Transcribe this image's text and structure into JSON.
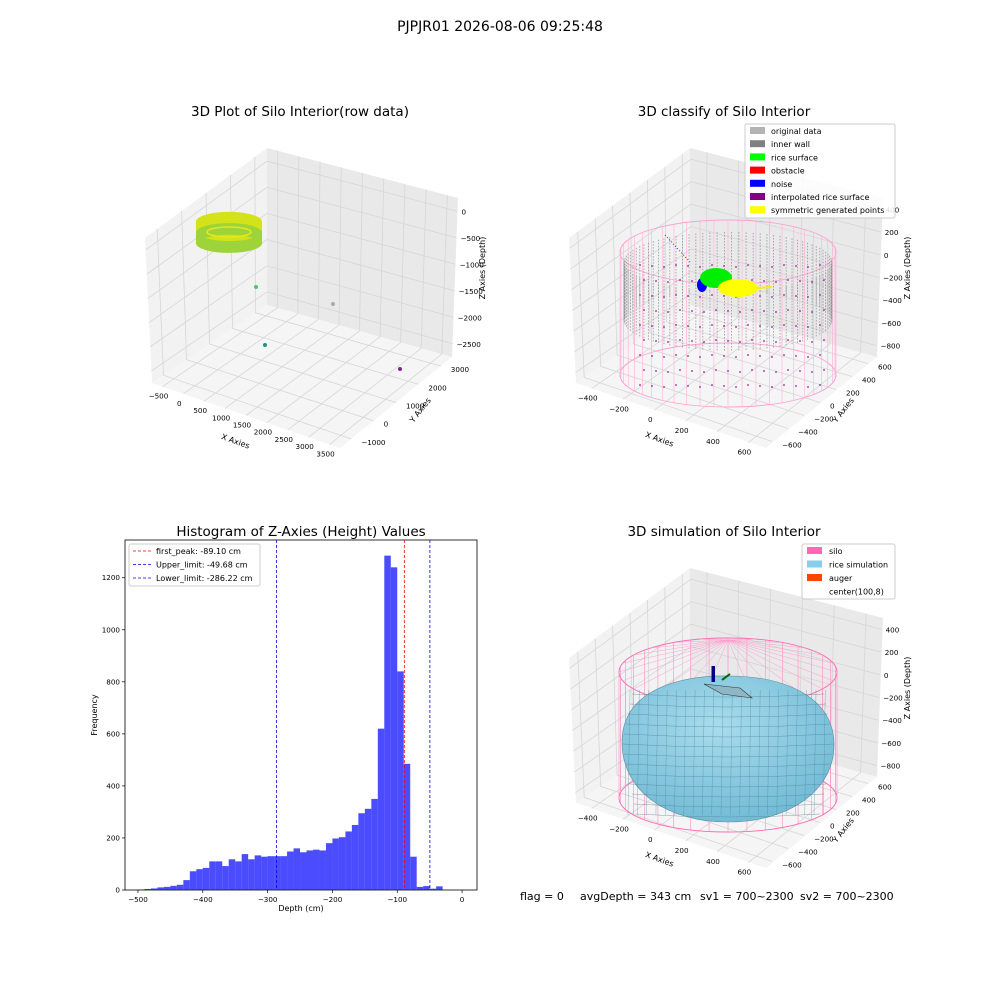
{
  "suptitle": "PJPJR01 2026-08-06 09:25:48",
  "footer": {
    "flag": "flag = 0",
    "avg": "avgDepth = 343 cm",
    "sv1": "sv1 = 700~2300",
    "sv2": "sv2 = 700~2300"
  },
  "chart_data": [
    {
      "type": "scatter",
      "dimension": "3d",
      "title": "3D Plot of Silo Interior(row data)",
      "xlabel": "X Axies",
      "ylabel": "Y Axies",
      "zlabel": "Z Axies (Depth)",
      "x_ticks": [
        "−500",
        "0",
        "500",
        "1000",
        "1500",
        "2000",
        "2500",
        "3000",
        "3500"
      ],
      "y_ticks": [
        "−1000",
        "0",
        "1000",
        "2000",
        "3000"
      ],
      "z_ticks": [
        "0",
        "−500",
        "−1000",
        "−1500",
        "−2000",
        "−2500"
      ],
      "points": [
        {
          "x": -300,
          "y": 700,
          "z": -100,
          "color": "#c8e61e",
          "group": "ring"
        },
        {
          "x": 400,
          "y": 1500,
          "z": -1450,
          "color": "#4cc46c"
        },
        {
          "x": 2800,
          "y": 1500,
          "z": -2000,
          "color": "#aaaaaa"
        },
        {
          "x": 1900,
          "y": 0,
          "z": -2500,
          "color": "#21918c"
        },
        {
          "x": 3400,
          "y": 2000,
          "z": -2200,
          "color": "#7b2a8a"
        }
      ]
    },
    {
      "type": "scatter",
      "dimension": "3d",
      "title": "3D classify of Silo Interior",
      "xlabel": "X Axies",
      "ylabel": "Y Axies",
      "zlabel": "Z Axies (Depth)",
      "x_ticks": [
        "−400",
        "−200",
        "0",
        "200",
        "400",
        "600"
      ],
      "y_ticks": [
        "−600",
        "−400",
        "−200",
        "0",
        "200",
        "400",
        "600"
      ],
      "z_ticks": [
        "400",
        "200",
        "0",
        "−200",
        "−400",
        "−600",
        "−800"
      ],
      "legend": [
        {
          "label": "original data",
          "color": "#b3b3b3"
        },
        {
          "label": "inner wall",
          "color": "#808080"
        },
        {
          "label": "rice surface",
          "color": "#00ff00"
        },
        {
          "label": "obstacle",
          "color": "#ff0000"
        },
        {
          "label": "noise",
          "color": "#0000ff"
        },
        {
          "label": "interpolated rice surface",
          "color": "#800080"
        },
        {
          "label": "symmetric generated points",
          "color": "#ffff00"
        }
      ],
      "legend_position": "upper right"
    },
    {
      "type": "bar",
      "title": "Histogram of Z-Axies (Height) Values",
      "xlabel": "Depth (cm)",
      "ylabel": "Frequency",
      "xlim": [
        -520,
        23
      ],
      "ylim": [
        0,
        1345
      ],
      "x_ticks": [
        "−500",
        "−400",
        "−300",
        "−200",
        "−100",
        "0"
      ],
      "y_ticks": [
        "0",
        "200",
        "400",
        "600",
        "800",
        "1000",
        "1200"
      ],
      "bin_start": -500,
      "bin_width": 10,
      "values": [
        2,
        4,
        6,
        10,
        12,
        16,
        20,
        38,
        72,
        80,
        85,
        110,
        110,
        92,
        118,
        110,
        138,
        118,
        133,
        128,
        130,
        130,
        130,
        148,
        160,
        145,
        152,
        155,
        152,
        180,
        198,
        203,
        225,
        250,
        295,
        312,
        350,
        620,
        1285,
        1240,
        840,
        485,
        128,
        12,
        15,
        5,
        14
      ],
      "color": "#0000ff",
      "lines": [
        {
          "label": "first_peak: -89.10 cm",
          "x": -89.1,
          "color": "#ff0000"
        },
        {
          "label": "Upper_limit: -49.68 cm",
          "x": -49.68,
          "color": "#0000ff"
        },
        {
          "label": "Lower_limit: -286.22 cm",
          "x": -286.22,
          "color": "#0000ff"
        }
      ],
      "legend_position": "upper left"
    },
    {
      "type": "surface",
      "dimension": "3d",
      "title": "3D simulation of Silo Interior",
      "xlabel": "X Axies",
      "ylabel": "Y Axies",
      "zlabel": "Z Axies (Depth)",
      "x_ticks": [
        "−400",
        "−200",
        "0",
        "200",
        "400",
        "600"
      ],
      "y_ticks": [
        "−600",
        "−400",
        "−200",
        "0",
        "200",
        "400",
        "600"
      ],
      "z_ticks": [
        "400",
        "200",
        "0",
        "−200",
        "−400",
        "−600",
        "−800"
      ],
      "legend": [
        {
          "label": "silo",
          "color": "#ff69b4"
        },
        {
          "label": "rice simulation",
          "color": "#87ceeb"
        },
        {
          "label": "auger",
          "color": "#ff4500"
        },
        {
          "label": "center(100,8)",
          "color": "none"
        }
      ],
      "legend_position": "upper right"
    }
  ]
}
